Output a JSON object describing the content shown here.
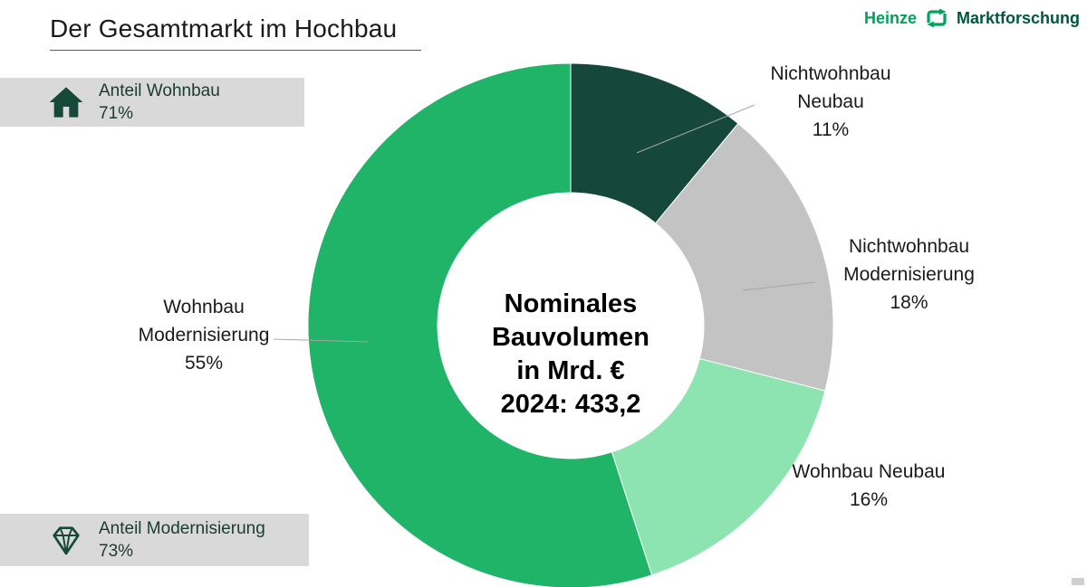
{
  "page": {
    "title": "Der Gesamtmarkt im Hochbau"
  },
  "logo": {
    "heinze": "Heinze",
    "marktforschung": "Marktforschung",
    "green": "#00a35b",
    "dark_green": "#00573c"
  },
  "badges": [
    {
      "icon": "house-icon",
      "label": "Anteil Wohnbau",
      "value": "71%"
    },
    {
      "icon": "diamond-icon",
      "label": "Anteil Modernisierung",
      "value": "73%"
    }
  ],
  "chart_data": {
    "type": "pie",
    "subtype": "donut",
    "title": "Nominales Bauvolumen in Mrd. € 2024: 433,2",
    "center_label": {
      "lines": [
        "Nominales",
        "Bauvolumen",
        "in Mrd. €",
        "2024: 433,2"
      ]
    },
    "year": "2024",
    "total_value_mrd_eur": "433,2",
    "start_angle_deg": -90,
    "direction": "clockwise",
    "donut_hole_ratio": 0.5,
    "legend_position": "none",
    "labels_outside": true,
    "segments": [
      {
        "label": "Nichtwohnbau Neubau",
        "pct": "11%",
        "value": 11,
        "color": "#15483a"
      },
      {
        "label": "Nichtwohnbau Modernisierung",
        "pct": "18%",
        "value": 18,
        "color": "#c3c3c3"
      },
      {
        "label": "Wohnbau Neubau",
        "pct": "16%",
        "value": 16,
        "color": "#8de4b0"
      },
      {
        "label": "Wohnbau Modernisierung",
        "pct": "55%",
        "value": 55,
        "color": "#1fb468"
      }
    ]
  }
}
